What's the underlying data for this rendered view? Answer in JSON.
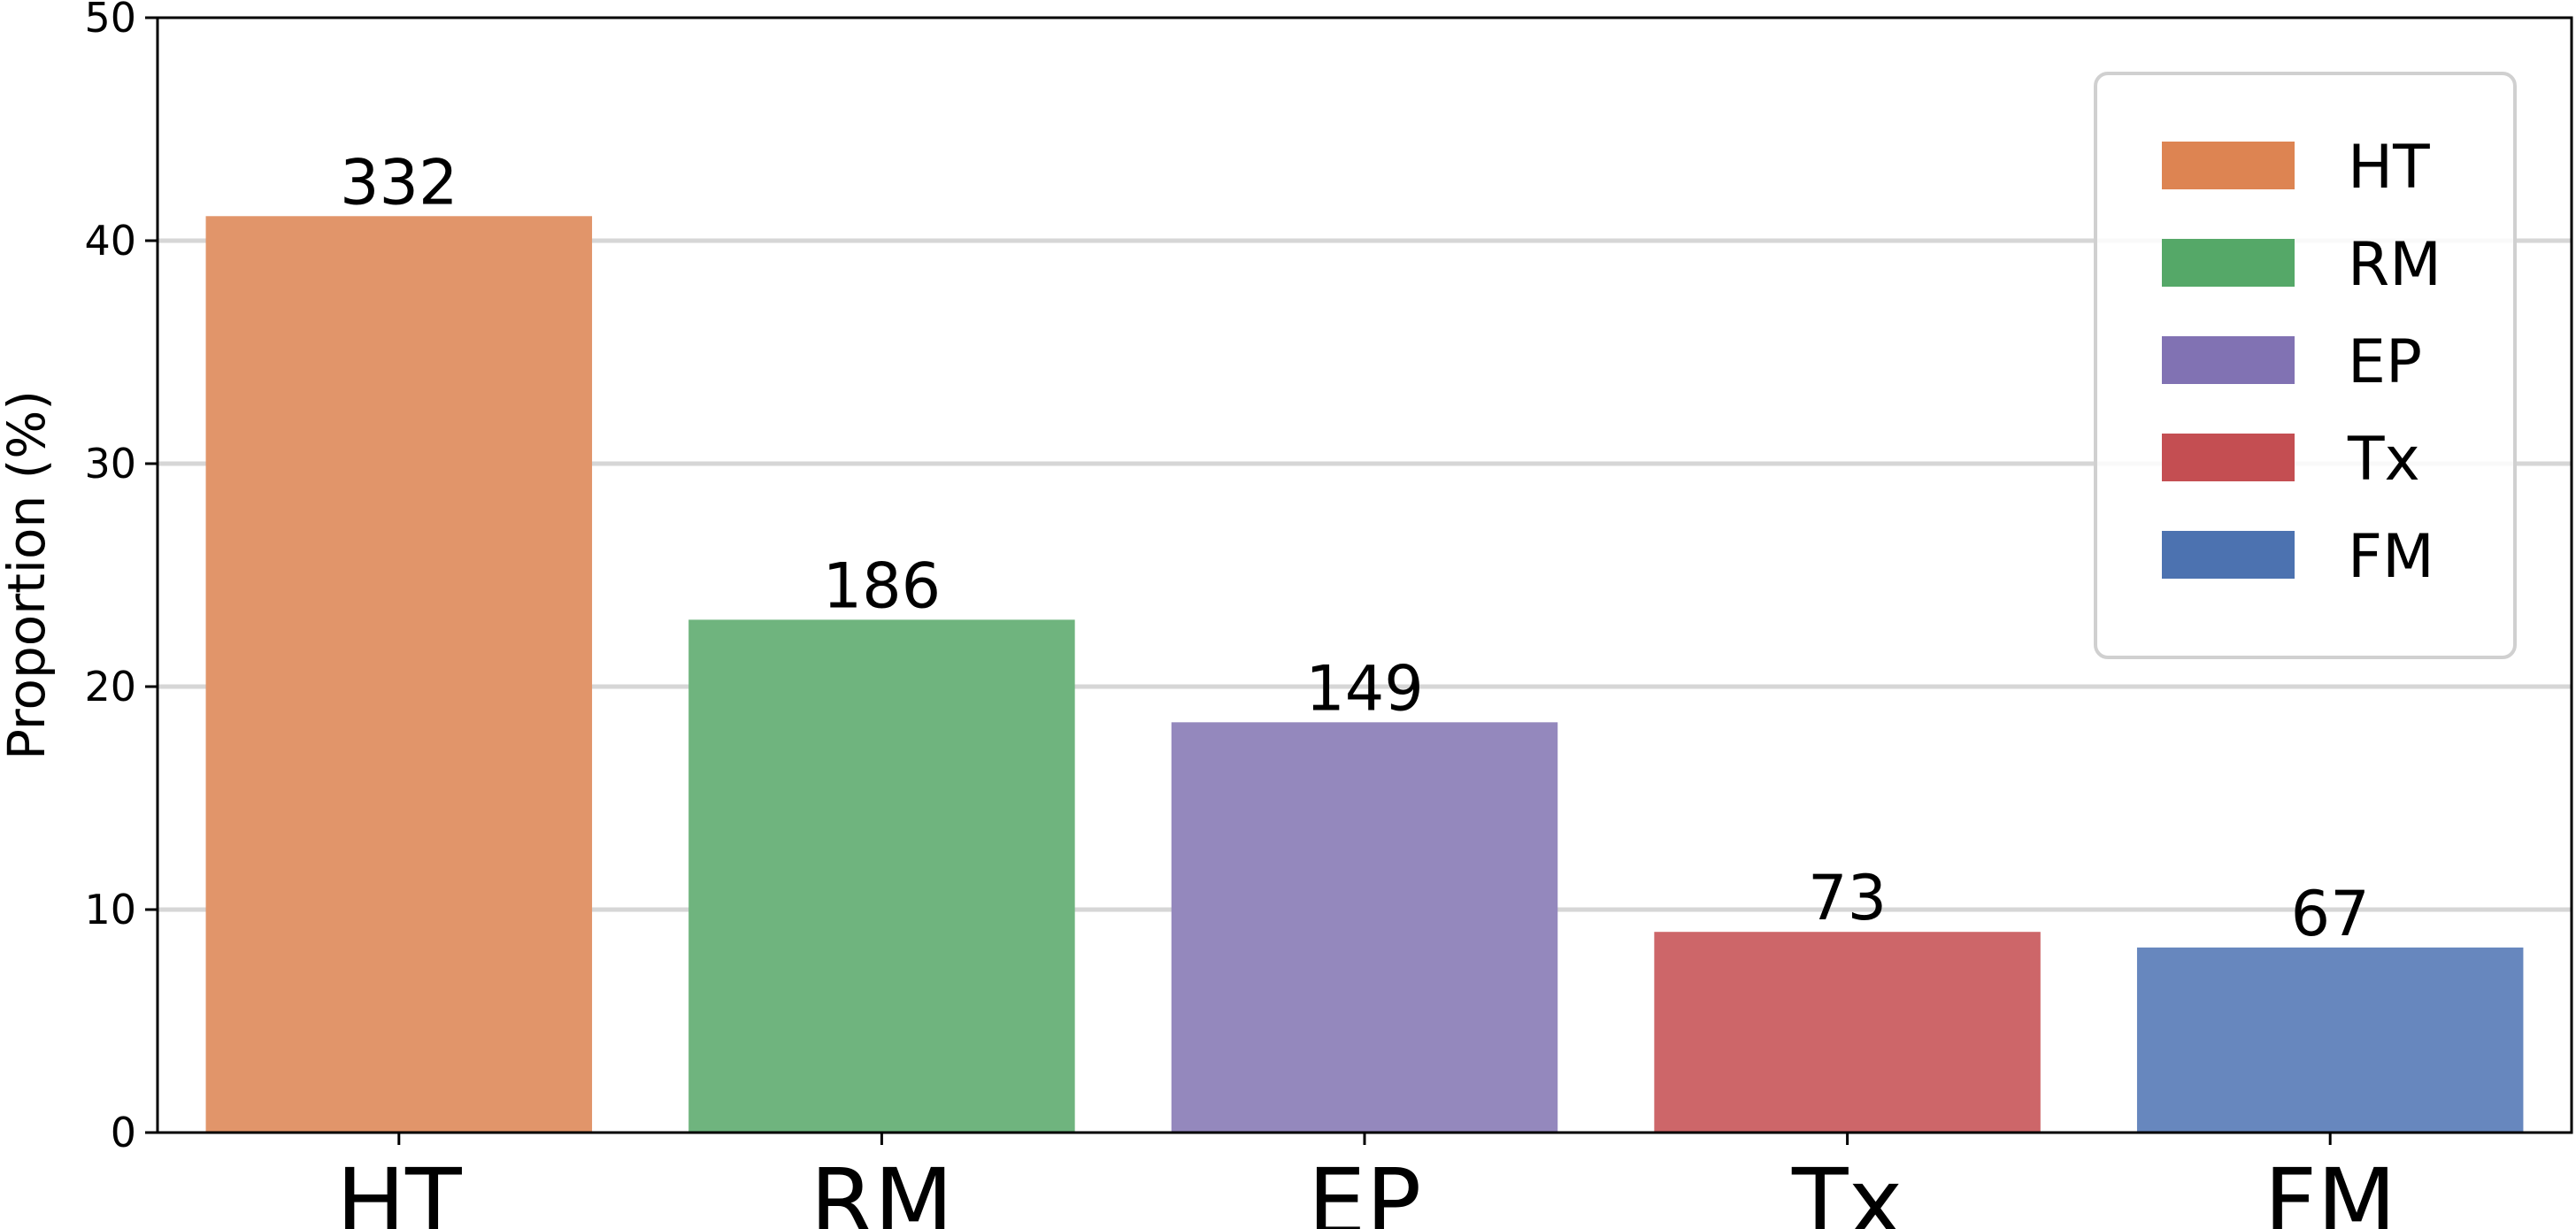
{
  "chart_data": {
    "type": "bar",
    "categories": [
      "HT",
      "RM",
      "EP",
      "Tx",
      "FM"
    ],
    "values": [
      41.1,
      23.0,
      18.4,
      9.0,
      8.3
    ],
    "data_labels": [
      "332",
      "186",
      "149",
      "73",
      "67"
    ],
    "colors": [
      "#E1956A",
      "#6FB47E",
      "#9488BD",
      "#CD6669",
      "#6787BE"
    ],
    "legend_colors": [
      "#DD8452",
      "#55A868",
      "#8172B3",
      "#C44E52",
      "#4C72B0"
    ],
    "ylabel": "Proportion (%)",
    "ylim": [
      0,
      50
    ],
    "yticks": [
      "0",
      "10",
      "20",
      "30",
      "40",
      "50"
    ],
    "grid": "horizontal",
    "legend_position": "top-right",
    "legend": [
      "HT",
      "RM",
      "EP",
      "Tx",
      "FM"
    ]
  }
}
